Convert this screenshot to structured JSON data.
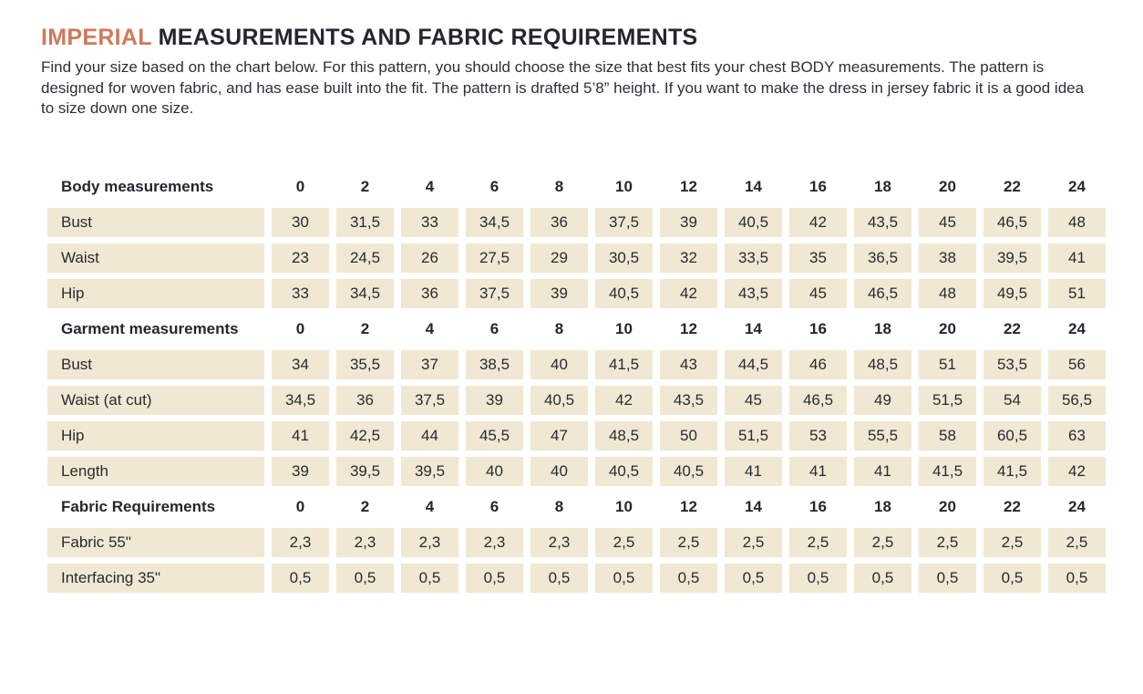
{
  "colors": {
    "accent_orange": "#d0795c",
    "cell_beige": "#f1e8d3",
    "text_dark": "#23272e"
  },
  "header": {
    "title_highlight": "IMPERIAL",
    "title_rest": "MEASUREMENTS AND FABRIC REQUIREMENTS",
    "intro": "Find your size based on the chart below. For this pattern, you should choose the size that best fits your chest BODY measurements. The pattern is designed for woven fabric, and has ease built into the fit. The pattern is drafted 5’8” height. If you want to make the dress in jersey fabric it is a good idea to size down one size."
  },
  "table": {
    "sizes": [
      "0",
      "2",
      "4",
      "6",
      "8",
      "10",
      "12",
      "14",
      "16",
      "18",
      "20",
      "22",
      "24"
    ],
    "sections": [
      {
        "header": "Body measurements",
        "rows": [
          {
            "label": "Bust",
            "values": [
              "30",
              "31,5",
              "33",
              "34,5",
              "36",
              "37,5",
              "39",
              "40,5",
              "42",
              "43,5",
              "45",
              "46,5",
              "48"
            ]
          },
          {
            "label": "Waist",
            "values": [
              "23",
              "24,5",
              "26",
              "27,5",
              "29",
              "30,5",
              "32",
              "33,5",
              "35",
              "36,5",
              "38",
              "39,5",
              "41"
            ]
          },
          {
            "label": "Hip",
            "values": [
              "33",
              "34,5",
              "36",
              "37,5",
              "39",
              "40,5",
              "42",
              "43,5",
              "45",
              "46,5",
              "48",
              "49,5",
              "51"
            ]
          }
        ]
      },
      {
        "header": "Garment measurements",
        "rows": [
          {
            "label": "Bust",
            "values": [
              "34",
              "35,5",
              "37",
              "38,5",
              "40",
              "41,5",
              "43",
              "44,5",
              "46",
              "48,5",
              "51",
              "53,5",
              "56"
            ]
          },
          {
            "label": "Waist  (at cut)",
            "values": [
              "34,5",
              "36",
              "37,5",
              "39",
              "40,5",
              "42",
              "43,5",
              "45",
              "46,5",
              "49",
              "51,5",
              "54",
              "56,5"
            ]
          },
          {
            "label": "Hip",
            "values": [
              "41",
              "42,5",
              "44",
              "45,5",
              "47",
              "48,5",
              "50",
              "51,5",
              "53",
              "55,5",
              "58",
              "60,5",
              "63"
            ]
          },
          {
            "label": "Length",
            "values": [
              "39",
              "39,5",
              "39,5",
              "40",
              "40",
              "40,5",
              "40,5",
              "41",
              "41",
              "41",
              "41,5",
              "41,5",
              "42"
            ]
          }
        ]
      },
      {
        "header": "Fabric Requirements",
        "rows": [
          {
            "label": "Fabric 55\"",
            "values": [
              "2,3",
              "2,3",
              "2,3",
              "2,3",
              "2,3",
              "2,5",
              "2,5",
              "2,5",
              "2,5",
              "2,5",
              "2,5",
              "2,5",
              "2,5"
            ]
          },
          {
            "label": "Interfacing 35\"",
            "values": [
              "0,5",
              "0,5",
              "0,5",
              "0,5",
              "0,5",
              "0,5",
              "0,5",
              "0,5",
              "0,5",
              "0,5",
              "0,5",
              "0,5",
              "0,5"
            ]
          }
        ]
      }
    ]
  }
}
